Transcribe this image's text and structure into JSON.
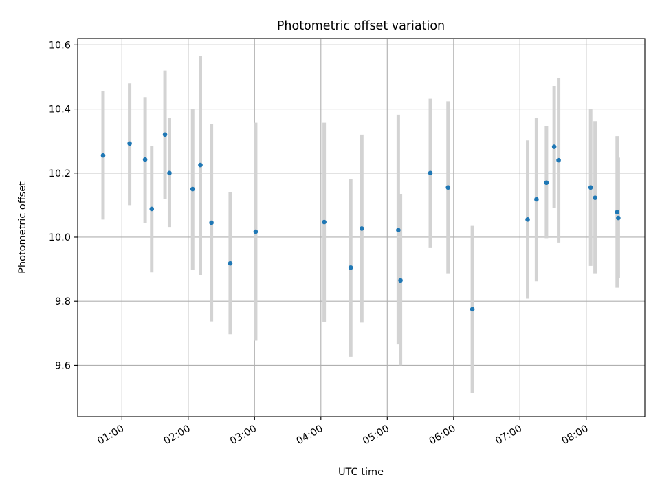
{
  "chart_data": {
    "type": "scatter",
    "title": "Photometric offset variation",
    "xlabel": "UTC time",
    "ylabel": "Photometric offset",
    "xlim": [
      "00:20",
      "08:53"
    ],
    "ylim": [
      9.44,
      10.62
    ],
    "xticks": [
      "01:00",
      "02:00",
      "03:00",
      "04:00",
      "05:00",
      "06:00",
      "07:00",
      "08:00"
    ],
    "yticks": [
      9.6,
      9.8,
      10.0,
      10.2,
      10.4,
      10.6
    ],
    "ytick_labels": [
      "9.6",
      "9.8",
      "10.0",
      "10.2",
      "10.4",
      "10.6"
    ],
    "grid": true,
    "colors": {
      "points": "#1f77b4",
      "error_bars": "#d3d3d3",
      "grid": "#b0b0b0",
      "axes": "#000000"
    },
    "points": [
      {
        "time": "00:43",
        "y": 10.255,
        "lo": 10.055,
        "hi": 10.455
      },
      {
        "time": "01:07",
        "y": 10.292,
        "lo": 10.1,
        "hi": 10.48
      },
      {
        "time": "01:21",
        "y": 10.242,
        "lo": 10.045,
        "hi": 10.437
      },
      {
        "time": "01:27",
        "y": 10.088,
        "lo": 9.89,
        "hi": 10.285
      },
      {
        "time": "01:39",
        "y": 10.32,
        "lo": 10.118,
        "hi": 10.52
      },
      {
        "time": "01:43",
        "y": 10.2,
        "lo": 10.032,
        "hi": 10.372
      },
      {
        "time": "02:04",
        "y": 10.15,
        "lo": 9.897,
        "hi": 10.4
      },
      {
        "time": "02:11",
        "y": 10.225,
        "lo": 9.882,
        "hi": 10.565
      },
      {
        "time": "02:21",
        "y": 10.045,
        "lo": 9.737,
        "hi": 10.352
      },
      {
        "time": "02:38",
        "y": 9.918,
        "lo": 9.697,
        "hi": 10.14
      },
      {
        "time": "03:01",
        "y": 10.017,
        "lo": 9.677,
        "hi": 10.357
      },
      {
        "time": "04:03",
        "y": 10.047,
        "lo": 9.736,
        "hi": 10.357
      },
      {
        "time": "04:27",
        "y": 9.905,
        "lo": 9.627,
        "hi": 10.182
      },
      {
        "time": "04:37",
        "y": 10.027,
        "lo": 9.733,
        "hi": 10.32
      },
      {
        "time": "05:10",
        "y": 10.022,
        "lo": 9.665,
        "hi": 10.382
      },
      {
        "time": "05:12",
        "y": 9.865,
        "lo": 9.6,
        "hi": 10.135
      },
      {
        "time": "05:39",
        "y": 10.2,
        "lo": 9.968,
        "hi": 10.432
      },
      {
        "time": "05:55",
        "y": 10.155,
        "lo": 9.887,
        "hi": 10.424
      },
      {
        "time": "06:17",
        "y": 9.775,
        "lo": 9.515,
        "hi": 10.035
      },
      {
        "time": "07:07",
        "y": 10.055,
        "lo": 9.808,
        "hi": 10.302
      },
      {
        "time": "07:15",
        "y": 10.118,
        "lo": 9.862,
        "hi": 10.372
      },
      {
        "time": "07:24",
        "y": 10.17,
        "lo": 9.997,
        "hi": 10.347
      },
      {
        "time": "07:31",
        "y": 10.282,
        "lo": 10.092,
        "hi": 10.472
      },
      {
        "time": "07:35",
        "y": 10.24,
        "lo": 9.983,
        "hi": 10.496
      },
      {
        "time": "08:04",
        "y": 10.155,
        "lo": 9.91,
        "hi": 10.4
      },
      {
        "time": "08:08",
        "y": 10.123,
        "lo": 9.887,
        "hi": 10.362
      },
      {
        "time": "08:28",
        "y": 10.078,
        "lo": 9.842,
        "hi": 10.315
      },
      {
        "time": "08:29",
        "y": 10.06,
        "lo": 9.872,
        "hi": 10.248
      }
    ]
  }
}
